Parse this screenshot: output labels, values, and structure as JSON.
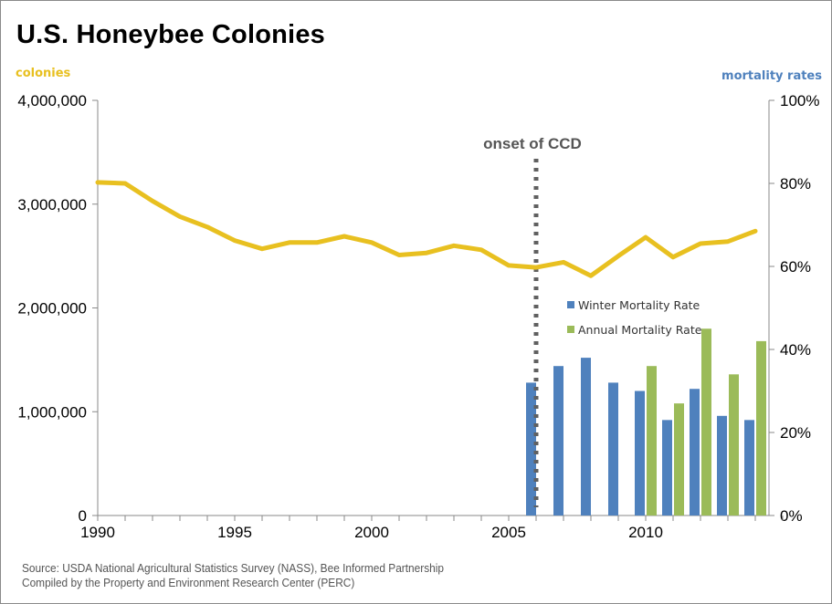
{
  "chart_data": {
    "type": "line+bar",
    "title": "U.S. Honeybee Colonies",
    "left_axis_label": "colonies",
    "right_axis_label": "mortality rates",
    "x": [
      1990,
      1991,
      1992,
      1993,
      1994,
      1995,
      1996,
      1997,
      1998,
      1999,
      2000,
      2001,
      2002,
      2003,
      2004,
      2005,
      2006,
      2007,
      2008,
      2009,
      2010,
      2011,
      2012,
      2013,
      2014
    ],
    "x_ticks": [
      "1990",
      "1995",
      "2000",
      "2005",
      "2010"
    ],
    "xlim": [
      1990,
      2015
    ],
    "y_left_ticks": [
      "0",
      "1,000,000",
      "2,000,000",
      "3,000,000",
      "4,000,000"
    ],
    "ylim_left": [
      0,
      4000000
    ],
    "y_right_ticks": [
      "0%",
      "20%",
      "40%",
      "60%",
      "80%",
      "100%"
    ],
    "ylim_right": [
      0,
      100
    ],
    "line_series": {
      "name": "colonies",
      "color": "#e8c020",
      "values": [
        3210000,
        3200000,
        3030000,
        2880000,
        2780000,
        2650000,
        2570000,
        2630000,
        2630000,
        2690000,
        2630000,
        2510000,
        2530000,
        2600000,
        2560000,
        2410000,
        2390000,
        2440000,
        2310000,
        2500000,
        2680000,
        2490000,
        2620000,
        2640000,
        2740000
      ]
    },
    "bar_series": [
      {
        "name": "Winter Mortality Rate",
        "color": "#4f81bd",
        "years": [
          2006,
          2007,
          2008,
          2009,
          2010,
          2011,
          2012,
          2013,
          2014
        ],
        "values": [
          32,
          36,
          38,
          32,
          30,
          23,
          30.5,
          24,
          23
        ]
      },
      {
        "name": "Annual Mortality Rate",
        "color": "#9bbb59",
        "years": [
          2010,
          2011,
          2012,
          2013,
          2014
        ],
        "values": [
          36,
          27,
          45,
          34,
          42
        ]
      }
    ],
    "annotation": {
      "text": "onset of CCD",
      "x": 2006
    },
    "legend_position": "center-right",
    "grid": false
  },
  "footer": {
    "source_line1": "Source: USDA National Agricultural Statistics Survey (NASS), Bee Informed Partnership",
    "source_line2": "Compiled by the Property and Environment Research Center (PERC)"
  }
}
